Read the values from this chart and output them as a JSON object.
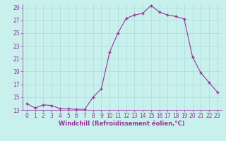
{
  "x": [
    0,
    1,
    2,
    3,
    4,
    5,
    6,
    7,
    8,
    9,
    10,
    11,
    12,
    13,
    14,
    15,
    16,
    17,
    18,
    19,
    20,
    21,
    22,
    23
  ],
  "y": [
    14.0,
    13.3,
    13.8,
    13.7,
    13.2,
    13.2,
    13.1,
    13.1,
    15.0,
    16.3,
    22.0,
    25.0,
    27.3,
    27.8,
    28.1,
    29.3,
    28.3,
    27.8,
    27.6,
    27.2,
    21.3,
    18.8,
    17.3,
    15.8
  ],
  "ylim_min": 13,
  "ylim_max": 29,
  "xlim_min": 0,
  "xlim_max": 23,
  "yticks": [
    13,
    15,
    17,
    19,
    21,
    23,
    25,
    27,
    29
  ],
  "xticks": [
    0,
    1,
    2,
    3,
    4,
    5,
    6,
    7,
    8,
    9,
    10,
    11,
    12,
    13,
    14,
    15,
    16,
    17,
    18,
    19,
    20,
    21,
    22,
    23
  ],
  "xlabel": "Windchill (Refroidissement éolien,°C)",
  "line_color": "#993399",
  "marker": "+",
  "bg_color": "#c8f0ec",
  "grid_color": "#aadddd",
  "tick_fontsize": 5.5,
  "xlabel_fontsize": 6.0
}
